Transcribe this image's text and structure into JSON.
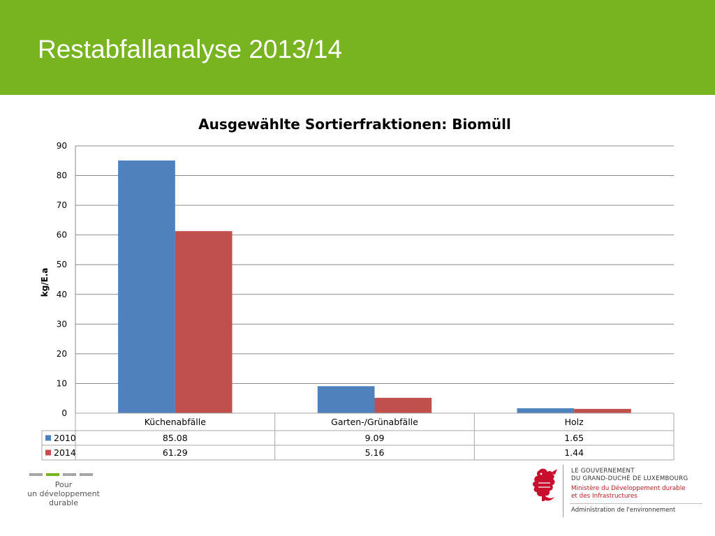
{
  "header": {
    "title": "Restabfallanalyse 2013/14"
  },
  "chart_data": {
    "type": "bar",
    "title": "Ausgewählte Sortierfraktionen: Biomüll",
    "ylabel": "kg/E.a",
    "xlabel": "",
    "categories": [
      "Küchenabfälle",
      "Garten-/Grünabfälle",
      "Holz"
    ],
    "series": [
      {
        "name": "2010",
        "values": [
          85.08,
          9.09,
          1.65
        ],
        "value_labels": [
          "85.08",
          "9.09",
          "1.65"
        ],
        "color": "#4f81bd"
      },
      {
        "name": "2014",
        "values": [
          61.29,
          5.16,
          1.44
        ],
        "value_labels": [
          "61.29",
          "5.16",
          "1.44"
        ],
        "color": "#c0504d"
      }
    ],
    "ylim": [
      0,
      90
    ],
    "yticks": [
      0,
      10,
      20,
      30,
      40,
      50,
      60,
      70,
      80,
      90
    ],
    "grid": true,
    "legend": "data-table",
    "data_table": true
  },
  "footer": {
    "tagline": [
      "Pour",
      "un développement",
      "durable"
    ],
    "government_lines": [
      "LE GOUVERNEMENT",
      "DU GRAND-DUCHÉ DE LUXEMBOURG"
    ],
    "ministry_lines": [
      "Ministère du Développement durable",
      "et des Infrastructures"
    ],
    "administration": "Administration de l'environnement",
    "brand_color": "#77b41f",
    "ministry_color": "#b32025"
  }
}
